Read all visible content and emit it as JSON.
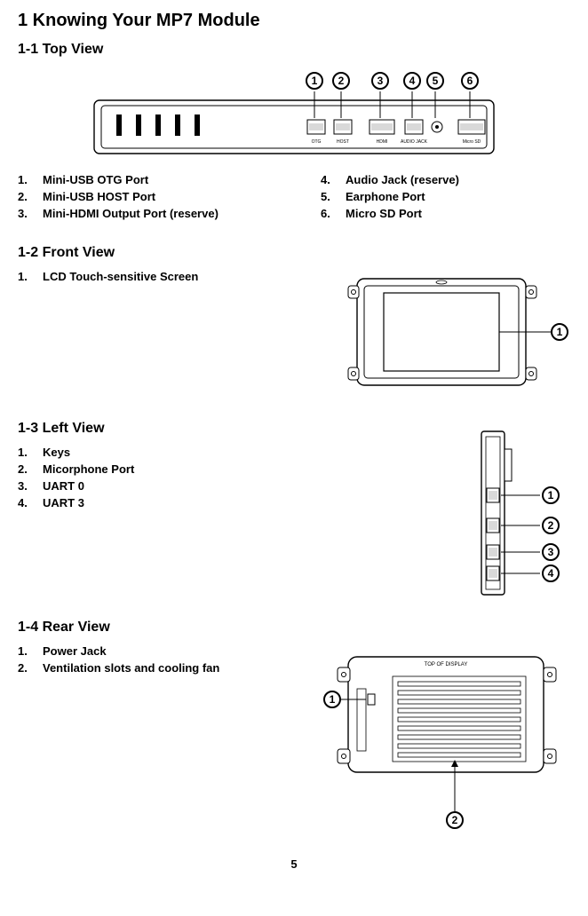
{
  "title": "1 Knowing Your MP7 Module",
  "sections": {
    "top": {
      "heading": "1-1 Top View",
      "leftItems": [
        "Mini-USB OTG Port",
        "Mini-USB HOST Port",
        "Mini-HDMI Output Port (reserve)"
      ],
      "rightItems": [
        "Audio Jack (reserve)",
        "Earphone Port",
        "Micro SD Port"
      ],
      "labelsTop": [
        "OTG",
        "HOST",
        "HDMI",
        "AUDIO JACK",
        "",
        "Micro SD"
      ]
    },
    "front": {
      "heading": "1-2 Front View",
      "items": [
        "LCD Touch-sensitive Screen"
      ]
    },
    "left": {
      "heading": "1-3 Left View",
      "items": [
        "Keys",
        "Micorphone Port",
        "UART 0",
        "UART 3"
      ]
    },
    "rear": {
      "heading": "1-4 Rear View",
      "items": [
        "Power Jack",
        "Ventilation slots and cooling fan"
      ],
      "topLabel": "TOP OF DISPLAY"
    }
  },
  "pageNumber": "5",
  "style": {
    "stroke": "#000000",
    "strokeWidth": 1.4,
    "circleR": 9,
    "circleStrokeW": 2,
    "font": "Arial"
  }
}
